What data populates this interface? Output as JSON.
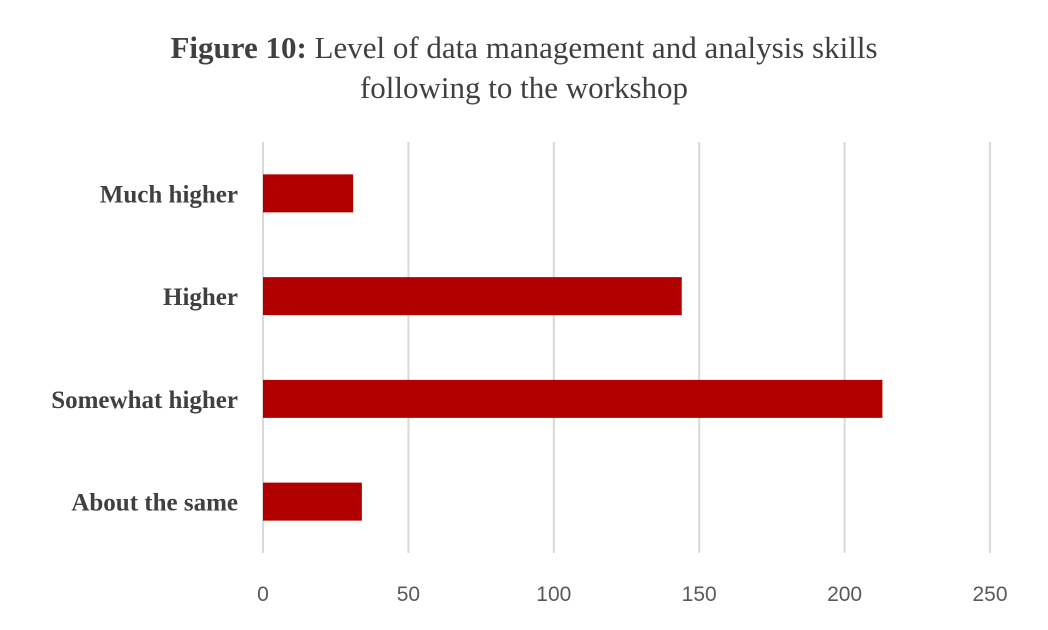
{
  "chart_data": {
    "type": "bar",
    "orientation": "horizontal",
    "title_prefix": "Figure 10:",
    "title_line1": " Level of data management and analysis skills",
    "title_line2": "following to the workshop",
    "categories": [
      "About the same",
      "Somewhat higher",
      "Higher",
      "Much higher"
    ],
    "values": [
      34,
      213,
      144,
      31
    ],
    "xlim": [
      0,
      250
    ],
    "xticks": [
      "0",
      "50",
      "100",
      "150",
      "200",
      "250"
    ],
    "grid": true,
    "legend": "none",
    "bar_color": "#B00000",
    "grid_color": "#D9D9D9"
  }
}
